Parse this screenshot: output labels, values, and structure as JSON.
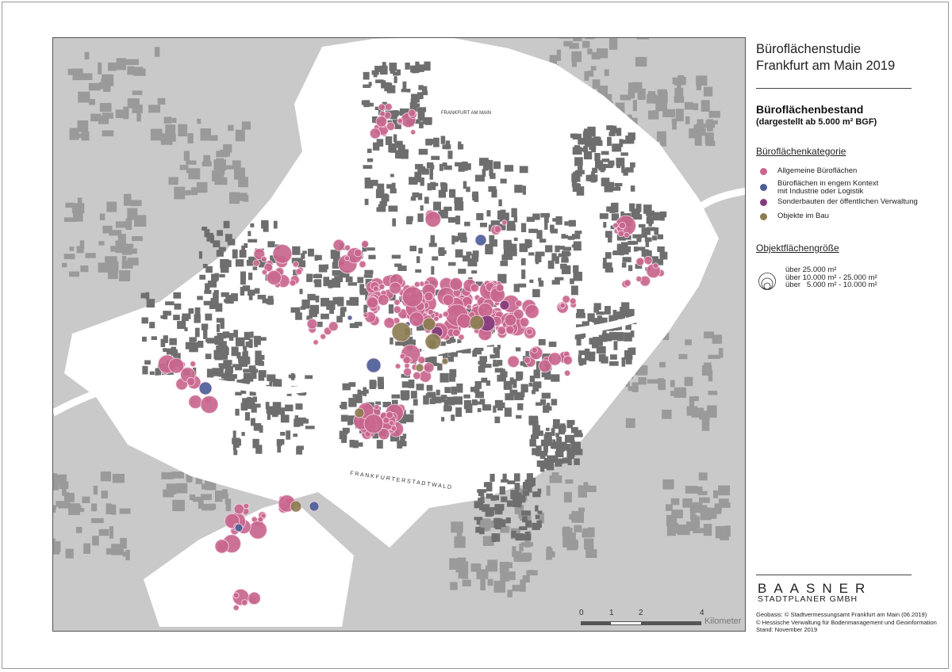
{
  "title": {
    "line1": "Büroflächenstudie",
    "line2": "Frankfurt am Main 2019"
  },
  "heading": {
    "main": "Büroflächenbestand",
    "sub": "(dargestellt ab 5.000 m² BGF)"
  },
  "category_legend": {
    "title": "Büroflächenkategorie",
    "items": [
      {
        "label": "Allgemeine Büroflächen",
        "color": "#c9668e"
      },
      {
        "label": "Büroflächen in engem Kontext",
        "label2": "mit Industrie oder Logistik",
        "color": "#4d5d98"
      },
      {
        "label": "Sonderbauten der öffentlichen Verwaltung",
        "color": "#843b7c"
      },
      {
        "label": "Objekte im Bau",
        "color": "#8c7d52"
      }
    ]
  },
  "size_legend": {
    "title": "Objektflächengröße",
    "items": [
      "über 25.000 m²",
      "über 10.000 m² - 25.000 m²",
      "über   5.000 m² - 10.000 m²"
    ]
  },
  "map": {
    "labels": {
      "stadtwald": "F R A N K F U R T E R   S T A D T W A L D",
      "city_north": "FRANKFURT AM MAIN"
    },
    "colors": {
      "background": "#c9c9c9",
      "city": "#ffffff",
      "urban": "#6f6f6f",
      "river": "#ffffff"
    }
  },
  "scale": {
    "ticks": [
      "0",
      "1",
      "2",
      "4"
    ],
    "unit": "Kilometer"
  },
  "logo": {
    "main": "BAASNER",
    "sub": "STADTPLANER GMBH"
  },
  "credits": [
    "Geobasis: © Stadtvermessungsamt Frankfurt am Main (06.2019)",
    "© Hessische Verwaltung für Bodenmanagement und Geoinformation",
    "Stand: November 2019"
  ]
}
